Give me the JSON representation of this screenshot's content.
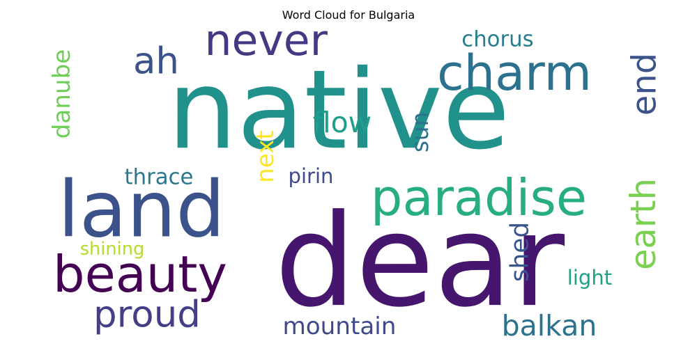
{
  "chart_data": {
    "type": "wordcloud",
    "title": "Word Cloud for Bulgaria",
    "words": [
      {
        "text": "native",
        "weight": 1.0,
        "color": "#21918c"
      },
      {
        "text": "dear",
        "weight": 0.98,
        "color": "#46166e"
      },
      {
        "text": "land",
        "weight": 0.7,
        "color": "#3b528b"
      },
      {
        "text": "charm",
        "weight": 0.42,
        "color": "#2c728e"
      },
      {
        "text": "never",
        "weight": 0.42,
        "color": "#443a83"
      },
      {
        "text": "paradise",
        "weight": 0.42,
        "color": "#27ad81"
      },
      {
        "text": "earth",
        "weight": 0.42,
        "color": "#7ad151"
      },
      {
        "text": "end",
        "weight": 0.42,
        "color": "#3b528b"
      },
      {
        "text": "beauty",
        "weight": 0.42,
        "color": "#440154"
      },
      {
        "text": "ah",
        "weight": 0.4,
        "color": "#3b528b"
      },
      {
        "text": "proud",
        "weight": 0.3,
        "color": "#433e85"
      },
      {
        "text": "mountain",
        "weight": 0.26,
        "color": "#3e4a89"
      },
      {
        "text": "balkan",
        "weight": 0.26,
        "color": "#2c728e"
      },
      {
        "text": "flow",
        "weight": 0.28,
        "color": "#1f9e89"
      },
      {
        "text": "shed",
        "weight": 0.24,
        "color": "#39568c"
      },
      {
        "text": "danube",
        "weight": 0.24,
        "color": "#6ece58"
      },
      {
        "text": "next",
        "weight": 0.24,
        "color": "#fde725"
      },
      {
        "text": "sun",
        "weight": 0.22,
        "color": "#2c728e"
      },
      {
        "text": "chorus",
        "weight": 0.18,
        "color": "#287d8e"
      },
      {
        "text": "thrace",
        "weight": 0.18,
        "color": "#2a788e"
      },
      {
        "text": "pirin",
        "weight": 0.17,
        "color": "#3e4a89"
      },
      {
        "text": "light",
        "weight": 0.18,
        "color": "#1fa187"
      },
      {
        "text": "shining",
        "weight": 0.16,
        "color": "#b5de2b"
      }
    ]
  }
}
